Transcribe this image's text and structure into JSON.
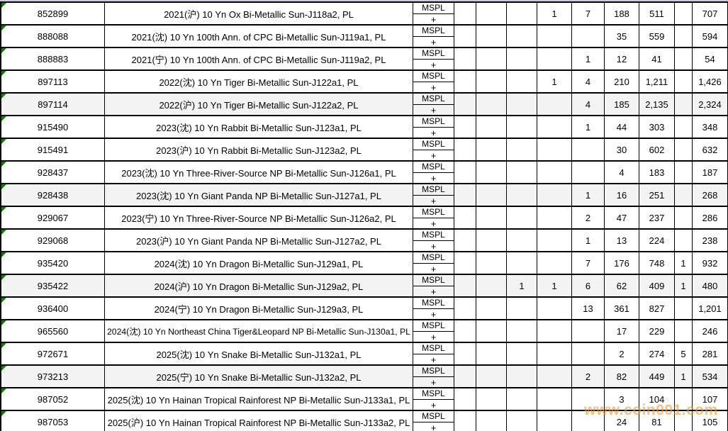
{
  "table": {
    "grade_label_top": "MSPL",
    "grade_label_bottom": "+",
    "rows": [
      {
        "cert": "852899",
        "description": "2021(沪) 10 Yn Ox Bi-Metallic Sun-J118a2, PL",
        "shaded": false,
        "values": [
          "",
          "",
          "",
          "1",
          "7",
          "188",
          "511",
          "",
          "707"
        ]
      },
      {
        "cert": "888088",
        "description": "2021(沈) 10 Yn 100th Ann. of CPC Bi-Metallic Sun-J119a1, PL",
        "shaded": false,
        "values": [
          "",
          "",
          "",
          "",
          "",
          "35",
          "559",
          "",
          "594"
        ]
      },
      {
        "cert": "888883",
        "description": "2021(宁) 10 Yn 100th Ann. of CPC Bi-Metallic Sun-J119a2, PL",
        "shaded": false,
        "values": [
          "",
          "",
          "",
          "",
          "1",
          "12",
          "41",
          "",
          "54"
        ]
      },
      {
        "cert": "897113",
        "description": "2022(沈) 10 Yn Tiger Bi-Metallic Sun-J122a1, PL",
        "shaded": false,
        "values": [
          "",
          "",
          "",
          "1",
          "4",
          "210",
          "1,211",
          "",
          "1,426"
        ]
      },
      {
        "cert": "897114",
        "description": "2022(沪) 10 Yn Tiger Bi-Metallic Sun-J122a2, PL",
        "shaded": true,
        "values": [
          "",
          "",
          "",
          "",
          "4",
          "185",
          "2,135",
          "",
          "2,324"
        ]
      },
      {
        "cert": "915490",
        "description": "2023(沈) 10 Yn Rabbit Bi-Metallic Sun-J123a1, PL",
        "shaded": false,
        "values": [
          "",
          "",
          "",
          "",
          "1",
          "44",
          "303",
          "",
          "348"
        ]
      },
      {
        "cert": "915491",
        "description": "2023(沪) 10 Yn Rabbit Bi-Metallic Sun-J123a2, PL",
        "shaded": false,
        "values": [
          "",
          "",
          "",
          "",
          "",
          "30",
          "602",
          "",
          "632"
        ]
      },
      {
        "cert": "928437",
        "description": "2023(沈) 10 Yn Three-River-Source NP Bi-Metallic Sun-J126a1, PL",
        "shaded": false,
        "values": [
          "",
          "",
          "",
          "",
          "",
          "4",
          "183",
          "",
          "187"
        ]
      },
      {
        "cert": "928438",
        "description": "2023(沈) 10 Yn Giant Panda NP Bi-Metallic Sun-J127a1, PL",
        "shaded": true,
        "values": [
          "",
          "",
          "",
          "",
          "1",
          "16",
          "251",
          "",
          "268"
        ]
      },
      {
        "cert": "929067",
        "description": "2023(宁) 10 Yn Three-River-Source NP Bi-Metallic Sun-J126a2, PL",
        "shaded": false,
        "values": [
          "",
          "",
          "",
          "",
          "2",
          "47",
          "237",
          "",
          "286"
        ]
      },
      {
        "cert": "929068",
        "description": "2023(沪) 10 Yn Giant Panda NP Bi-Metallic Sun-J127a2, PL",
        "shaded": false,
        "values": [
          "",
          "",
          "",
          "",
          "1",
          "13",
          "224",
          "",
          "238"
        ]
      },
      {
        "cert": "935420",
        "description": "2024(沈) 10 Yn Dragon Bi-Metallic Sun-J129a1, PL",
        "shaded": false,
        "values": [
          "",
          "",
          "",
          "",
          "7",
          "176",
          "748",
          "1",
          "932"
        ]
      },
      {
        "cert": "935422",
        "description": "2024(沪) 10 Yn Dragon Bi-Metallic Sun-J129a2, PL",
        "shaded": true,
        "values": [
          "",
          "",
          "1",
          "1",
          "6",
          "62",
          "409",
          "1",
          "480"
        ]
      },
      {
        "cert": "936400",
        "description": "2024(宁) 10 Yn Dragon Bi-Metallic Sun-J129a3, PL",
        "shaded": false,
        "values": [
          "",
          "",
          "",
          "",
          "13",
          "361",
          "827",
          "",
          "1,201"
        ]
      },
      {
        "cert": "965560",
        "description": "2024(沈) 10 Yn Northeast China Tiger&Leopard NP Bi-Metallic Sun-J130a1, PL",
        "shaded": false,
        "values": [
          "",
          "",
          "",
          "",
          "",
          "17",
          "229",
          "",
          "246"
        ]
      },
      {
        "cert": "972671",
        "description": "2025(沈) 10 Yn Snake Bi-Metallic Sun-J132a1, PL",
        "shaded": false,
        "values": [
          "",
          "",
          "",
          "",
          "",
          "2",
          "274",
          "5",
          "281"
        ]
      },
      {
        "cert": "973213",
        "description": "2025(宁) 10 Yn Snake Bi-Metallic Sun-J132a2, PL",
        "shaded": true,
        "values": [
          "",
          "",
          "",
          "",
          "2",
          "82",
          "449",
          "1",
          "534"
        ]
      },
      {
        "cert": "987052",
        "description": "2025(沈) 10 Yn Hainan Tropical Rainforest NP Bi-Metallic Sun-J133a1, PL",
        "shaded": false,
        "values": [
          "",
          "",
          "",
          "",
          "",
          "3",
          "104",
          "",
          "107"
        ]
      },
      {
        "cert": "987053",
        "description": "2025(沪) 10 Yn Hainan Tropical Rainforest NP Bi-Metallic Sun-J133a2, PL",
        "shaded": false,
        "values": [
          "",
          "",
          "",
          "",
          "",
          "24",
          "81",
          "",
          "105"
        ]
      }
    ]
  },
  "watermark": "www.coin001.com",
  "colors": {
    "border": "#000000",
    "shaded_row": "#f3f3f3",
    "header_strip": "#c9c9e2",
    "marker_green": "#107a10",
    "watermark_orange": "rgba(246,150,45,0.62)"
  }
}
